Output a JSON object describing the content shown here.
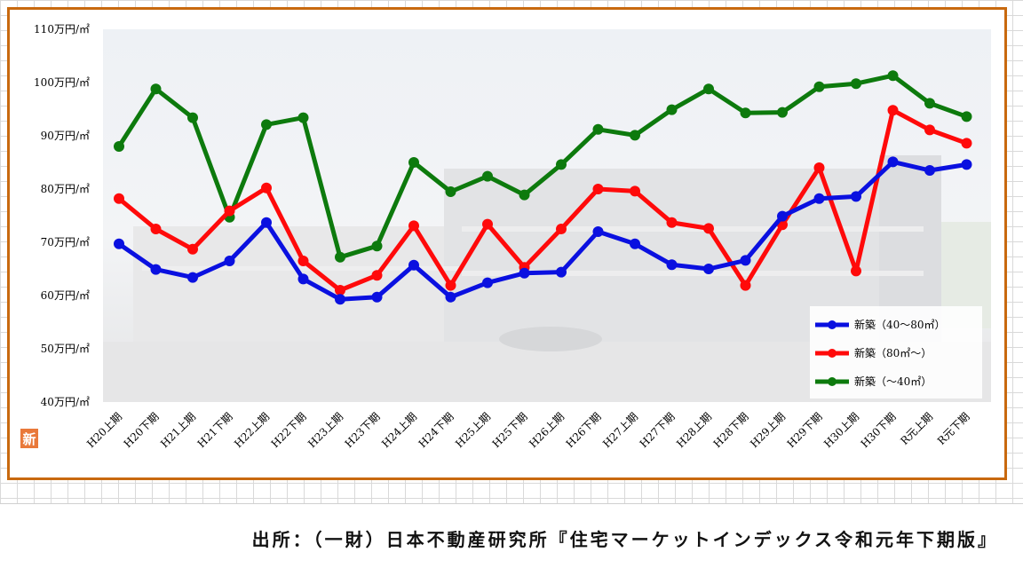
{
  "page": {
    "background": "#ffffff",
    "frame_color": "#c8690f"
  },
  "source": {
    "text": "出所：（一財）日本不動産研究所『住宅マーケットインデックス令和元年下期版』"
  },
  "badge": {
    "text": "新",
    "color": "#e9793a"
  },
  "chart_data": {
    "type": "line",
    "title": "",
    "xlabel": "",
    "ylabel": "",
    "ylim": [
      40,
      110
    ],
    "yticks": [
      40,
      50,
      60,
      70,
      80,
      90,
      100,
      110
    ],
    "ytick_labels": [
      "40万円/㎡",
      "50万円/㎡",
      "60万円/㎡",
      "70万円/㎡",
      "80万円/㎡",
      "90万円/㎡",
      "100万円/㎡",
      "110万円/㎡"
    ],
    "grid": false,
    "legend_position": "bottom-right",
    "background": "faded photo of apartment building",
    "categories": [
      "H20上期",
      "H20下期",
      "H21上期",
      "H21下期",
      "H22上期",
      "H22下期",
      "H23上期",
      "H23下期",
      "H24上期",
      "H24下期",
      "H25上期",
      "H25下期",
      "H26上期",
      "H26下期",
      "H27上期",
      "H27下期",
      "H28上期",
      "H28下期",
      "H29上期",
      "H29下期",
      "H30上期",
      "H30下期",
      "R元上期",
      "R元下期"
    ],
    "series": [
      {
        "name": "新築（40～80㎡）",
        "color": "#0a10e0",
        "values": [
          69.7,
          64.9,
          63.4,
          66.5,
          73.7,
          63.1,
          59.3,
          59.7,
          65.7,
          59.7,
          62.4,
          64.2,
          64.4,
          72.0,
          69.7,
          65.8,
          65.0,
          66.6,
          74.9,
          78.2,
          78.6,
          85.1,
          83.5,
          84.6
        ]
      },
      {
        "name": "新築（80㎡～）",
        "color": "#ff0a0a",
        "values": [
          78.2,
          72.5,
          68.7,
          75.9,
          80.2,
          66.5,
          61.0,
          63.8,
          73.1,
          61.9,
          73.4,
          65.3,
          72.5,
          80.0,
          79.6,
          73.7,
          72.6,
          61.9,
          73.3,
          84.0,
          64.6,
          94.8,
          91.1,
          88.6
        ]
      },
      {
        "name": "新築（～40㎡）",
        "color": "#0d7a0d",
        "values": [
          88.0,
          98.8,
          93.4,
          74.7,
          92.1,
          93.4,
          67.2,
          69.3,
          85.0,
          79.5,
          82.4,
          78.9,
          84.6,
          91.2,
          90.1,
          94.9,
          98.8,
          94.3,
          94.4,
          99.2,
          99.8,
          101.3,
          96.1,
          93.6
        ]
      }
    ]
  }
}
